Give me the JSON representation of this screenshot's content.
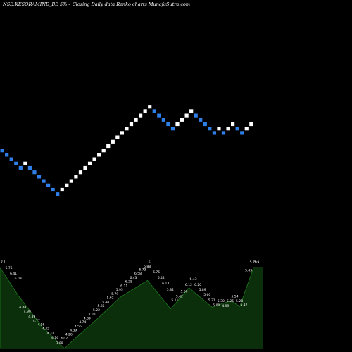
{
  "header": {
    "title": "NSE:KESORAMIND_BE 5%~ Closing Daily data Renko charts MunafaSutra.com"
  },
  "colors": {
    "background": "#000000",
    "up_brick": "#ffffff",
    "down_brick": "#2f7fe8",
    "level_line": "#c8541a",
    "volume_fill": "#0a2f0a",
    "volume_stroke": "#1f7a1f",
    "volume_label": "#ffffff"
  },
  "chart_data": [
    {
      "type": "renko",
      "name": "price",
      "box_size_percent": 5,
      "grid": false,
      "bricks": [
        {
          "col": 0,
          "level": 6,
          "dir": "down"
        },
        {
          "col": 1,
          "level": 5,
          "dir": "down"
        },
        {
          "col": 2,
          "level": 4,
          "dir": "down"
        },
        {
          "col": 3,
          "level": 3,
          "dir": "down"
        },
        {
          "col": 4,
          "level": 2,
          "dir": "down"
        },
        {
          "col": 5,
          "level": 3,
          "dir": "up"
        },
        {
          "col": 6,
          "level": 2,
          "dir": "down"
        },
        {
          "col": 7,
          "level": 1,
          "dir": "down"
        },
        {
          "col": 8,
          "level": 0,
          "dir": "down"
        },
        {
          "col": 9,
          "level": -1,
          "dir": "down"
        },
        {
          "col": 10,
          "level": -2,
          "dir": "down"
        },
        {
          "col": 11,
          "level": -3,
          "dir": "down"
        },
        {
          "col": 12,
          "level": -4,
          "dir": "down"
        },
        {
          "col": 13,
          "level": -3,
          "dir": "up"
        },
        {
          "col": 14,
          "level": -2,
          "dir": "up"
        },
        {
          "col": 15,
          "level": -1,
          "dir": "up"
        },
        {
          "col": 16,
          "level": 0,
          "dir": "up"
        },
        {
          "col": 17,
          "level": 1,
          "dir": "up"
        },
        {
          "col": 18,
          "level": 2,
          "dir": "up"
        },
        {
          "col": 19,
          "level": 3,
          "dir": "up"
        },
        {
          "col": 20,
          "level": 4,
          "dir": "up"
        },
        {
          "col": 21,
          "level": 5,
          "dir": "up"
        },
        {
          "col": 22,
          "level": 6,
          "dir": "up"
        },
        {
          "col": 23,
          "level": 7,
          "dir": "up"
        },
        {
          "col": 24,
          "level": 8,
          "dir": "up"
        },
        {
          "col": 25,
          "level": 9,
          "dir": "up"
        },
        {
          "col": 26,
          "level": 10,
          "dir": "up"
        },
        {
          "col": 27,
          "level": 11,
          "dir": "up"
        },
        {
          "col": 28,
          "level": 12,
          "dir": "up"
        },
        {
          "col": 29,
          "level": 13,
          "dir": "up"
        },
        {
          "col": 30,
          "level": 14,
          "dir": "up"
        },
        {
          "col": 31,
          "level": 15,
          "dir": "up"
        },
        {
          "col": 32,
          "level": 16,
          "dir": "up"
        },
        {
          "col": 33,
          "level": 15,
          "dir": "down"
        },
        {
          "col": 34,
          "level": 14,
          "dir": "down"
        },
        {
          "col": 35,
          "level": 13,
          "dir": "down"
        },
        {
          "col": 36,
          "level": 12,
          "dir": "down"
        },
        {
          "col": 37,
          "level": 11,
          "dir": "down"
        },
        {
          "col": 38,
          "level": 12,
          "dir": "up"
        },
        {
          "col": 39,
          "level": 13,
          "dir": "up"
        },
        {
          "col": 40,
          "level": 14,
          "dir": "up"
        },
        {
          "col": 41,
          "level": 15,
          "dir": "up"
        },
        {
          "col": 42,
          "level": 14,
          "dir": "down"
        },
        {
          "col": 43,
          "level": 13,
          "dir": "down"
        },
        {
          "col": 44,
          "level": 12,
          "dir": "down"
        },
        {
          "col": 45,
          "level": 11,
          "dir": "down"
        },
        {
          "col": 46,
          "level": 10,
          "dir": "down"
        },
        {
          "col": 47,
          "level": 11,
          "dir": "up"
        },
        {
          "col": 48,
          "level": 10,
          "dir": "down"
        },
        {
          "col": 49,
          "level": 11,
          "dir": "up"
        },
        {
          "col": 50,
          "level": 12,
          "dir": "up"
        },
        {
          "col": 51,
          "level": 11,
          "dir": "down"
        },
        {
          "col": 52,
          "level": 10,
          "dir": "down"
        },
        {
          "col": 53,
          "level": 11,
          "dir": "up"
        },
        {
          "col": 54,
          "level": 12,
          "dir": "up"
        }
      ],
      "reference_lines": [
        {
          "level": 10.8
        },
        {
          "level": 1.6
        }
      ]
    },
    {
      "type": "area",
      "name": "volume",
      "x": [
        0,
        4,
        9,
        14,
        16,
        21,
        26,
        32,
        37,
        41,
        46,
        50,
        52,
        55,
        57
      ],
      "y": [
        100,
        65,
        28,
        0,
        11,
        36,
        63,
        84,
        49,
        75,
        51,
        59,
        52,
        100,
        100
      ],
      "value_labels": [
        {
          "col": 0,
          "y": 100,
          "text": "7.1"
        },
        {
          "col": 1,
          "y": 93,
          "text": "6.75"
        },
        {
          "col": 2,
          "y": 86,
          "text": "6.41"
        },
        {
          "col": 3,
          "y": 80,
          "text": "6.09"
        },
        {
          "col": 4,
          "y": 45,
          "text": "4.88"
        },
        {
          "col": 5,
          "y": 39,
          "text": "4.99"
        },
        {
          "col": 6,
          "y": 33,
          "text": "4.89"
        },
        {
          "col": 7,
          "y": 28,
          "text": "4.77"
        },
        {
          "col": 8,
          "y": 23,
          "text": "4.56"
        },
        {
          "col": 9,
          "y": 18,
          "text": "4.42"
        },
        {
          "col": 10,
          "y": 12,
          "text": "4.32"
        },
        {
          "col": 11,
          "y": 7,
          "text": "4.16"
        },
        {
          "col": 12,
          "y": 0,
          "text": "3.99"
        },
        {
          "col": 13,
          "y": 6,
          "text": "4.07"
        },
        {
          "col": 14,
          "y": 11,
          "text": "4.26"
        },
        {
          "col": 15,
          "y": 16,
          "text": "4.39"
        },
        {
          "col": 16,
          "y": 21,
          "text": "4.55"
        },
        {
          "col": 17,
          "y": 26,
          "text": "4.74"
        },
        {
          "col": 18,
          "y": 31,
          "text": "4.89"
        },
        {
          "col": 19,
          "y": 36,
          "text": "5.06"
        },
        {
          "col": 20,
          "y": 41,
          "text": "5.22"
        },
        {
          "col": 21,
          "y": 46,
          "text": "5.35"
        },
        {
          "col": 22,
          "y": 51,
          "text": "5.48"
        },
        {
          "col": 23,
          "y": 56,
          "text": "5.62"
        },
        {
          "col": 24,
          "y": 61,
          "text": "5.79"
        },
        {
          "col": 25,
          "y": 66,
          "text": "5.95"
        },
        {
          "col": 26,
          "y": 71,
          "text": "6.11"
        },
        {
          "col": 27,
          "y": 76,
          "text": "6.28"
        },
        {
          "col": 28,
          "y": 81,
          "text": "6.43"
        },
        {
          "col": 29,
          "y": 86,
          "text": "6.58"
        },
        {
          "col": 30,
          "y": 91,
          "text": "6.73"
        },
        {
          "col": 31,
          "y": 95,
          "text": "6.88"
        },
        {
          "col": 32,
          "y": 100,
          "text": "6"
        },
        {
          "col": 33,
          "y": 88,
          "text": "6.75"
        },
        {
          "col": 34,
          "y": 81,
          "text": "6.44"
        },
        {
          "col": 35,
          "y": 74,
          "text": "6.13"
        },
        {
          "col": 36,
          "y": 66,
          "text": "5.82"
        },
        {
          "col": 37,
          "y": 53,
          "text": "5.11"
        },
        {
          "col": 38,
          "y": 58,
          "text": "5.42"
        },
        {
          "col": 39,
          "y": 64,
          "text": "5.60"
        },
        {
          "col": 40,
          "y": 72,
          "text": "6.12"
        },
        {
          "col": 41,
          "y": 79,
          "text": "6.43"
        },
        {
          "col": 42,
          "y": 72,
          "text": "6.20"
        },
        {
          "col": 43,
          "y": 66,
          "text": "5.89"
        },
        {
          "col": 44,
          "y": 60,
          "text": "5.60"
        },
        {
          "col": 45,
          "y": 53,
          "text": "5.31"
        },
        {
          "col": 46,
          "y": 47,
          "text": "5.00"
        },
        {
          "col": 47,
          "y": 52,
          "text": "5.30"
        },
        {
          "col": 48,
          "y": 46,
          "text": "4.99"
        },
        {
          "col": 49,
          "y": 52,
          "text": "5.26"
        },
        {
          "col": 50,
          "y": 58,
          "text": "5.54"
        },
        {
          "col": 51,
          "y": 52,
          "text": "5.28"
        },
        {
          "col": 52,
          "y": 48,
          "text": "5.17"
        },
        {
          "col": 53,
          "y": 90,
          "text": "5.43"
        },
        {
          "col": 54,
          "y": 100,
          "text": "5.70"
        },
        {
          "col": 55,
          "y": 100,
          "text": "5.9"
        }
      ]
    }
  ]
}
